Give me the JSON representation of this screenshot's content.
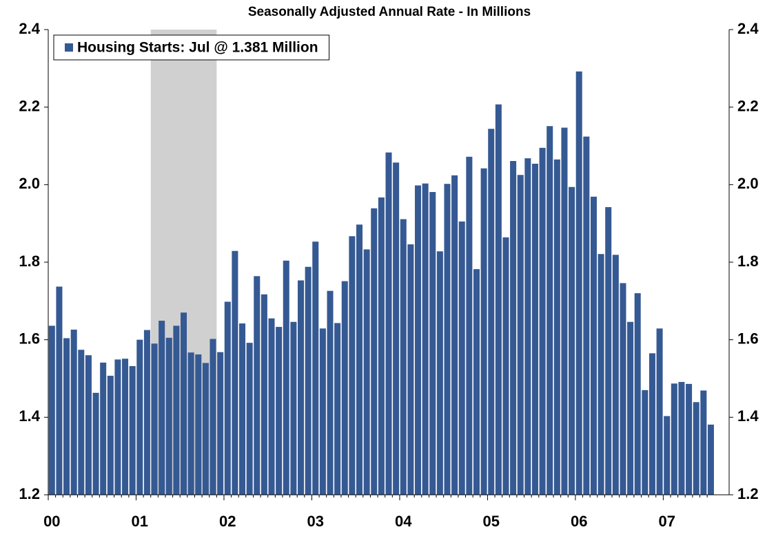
{
  "chart_data": {
    "type": "bar",
    "title": "Seasonally Adjusted Annual Rate - In Millions",
    "categories": [
      "00",
      null,
      null,
      null,
      null,
      null,
      null,
      null,
      null,
      null,
      null,
      null,
      "01",
      null,
      null,
      null,
      null,
      null,
      null,
      null,
      null,
      null,
      null,
      null,
      "02",
      null,
      null,
      null,
      null,
      null,
      null,
      null,
      null,
      null,
      null,
      null,
      "03",
      null,
      null,
      null,
      null,
      null,
      null,
      null,
      null,
      null,
      null,
      null,
      "04",
      null,
      null,
      null,
      null,
      null,
      null,
      null,
      null,
      null,
      null,
      null,
      "05",
      null,
      null,
      null,
      null,
      null,
      null,
      null,
      null,
      null,
      null,
      null,
      "06",
      null,
      null,
      null,
      null,
      null,
      null,
      null,
      null,
      null,
      null,
      null,
      "07",
      null,
      null,
      null,
      null,
      null,
      null
    ],
    "series": [
      {
        "name": "Housing Starts: Jul @ 1.381 Million",
        "color": "#355993",
        "values": [
          1.636,
          1.737,
          1.604,
          1.626,
          1.574,
          1.56,
          1.463,
          1.541,
          1.507,
          1.549,
          1.551,
          1.532,
          1.6,
          1.625,
          1.59,
          1.649,
          1.605,
          1.636,
          1.67,
          1.567,
          1.562,
          1.54,
          1.602,
          1.568,
          1.698,
          1.829,
          1.642,
          1.592,
          1.764,
          1.717,
          1.655,
          1.633,
          1.804,
          1.646,
          1.753,
          1.788,
          1.853,
          1.629,
          1.726,
          1.643,
          1.751,
          1.867,
          1.897,
          1.833,
          1.939,
          1.967,
          2.083,
          2.057,
          1.911,
          1.846,
          1.998,
          2.003,
          1.981,
          1.828,
          2.002,
          2.024,
          1.905,
          2.072,
          1.782,
          2.042,
          2.144,
          2.207,
          1.864,
          2.061,
          2.025,
          2.068,
          2.054,
          2.095,
          2.151,
          2.065,
          2.147,
          1.994,
          2.292,
          2.124,
          1.969,
          1.821,
          1.942,
          1.819,
          1.746,
          1.646,
          1.72,
          1.47,
          1.565,
          1.629,
          1.403,
          1.487,
          1.491,
          1.486,
          1.439,
          1.469,
          1.381
        ]
      }
    ],
    "shaded": [
      14,
      22
    ],
    "ylim": [
      1.2,
      2.4
    ],
    "yticks": [
      1.2,
      1.4,
      1.6,
      1.8,
      {
        "value": 2,
        "label": "2.0"
      },
      2.2,
      2.4
    ],
    "legend": "upper left"
  }
}
